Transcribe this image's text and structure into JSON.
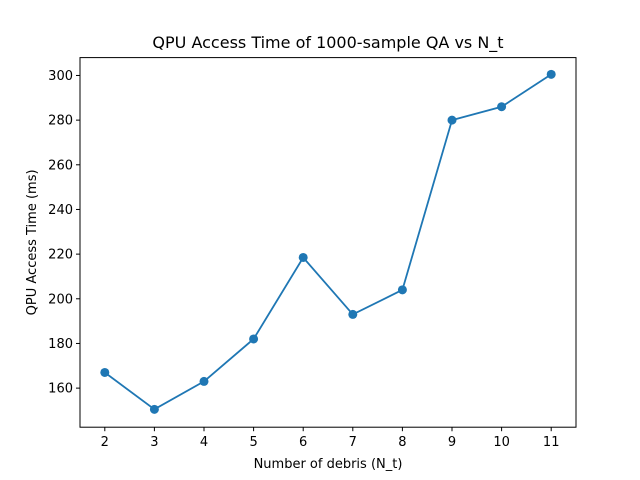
{
  "chart_data": {
    "type": "line",
    "title": "QPU Access Time of 1000-sample QA vs N_t",
    "xlabel": "Number of debris (N_t)",
    "ylabel": "QPU Access Time (ms)",
    "x": [
      2,
      3,
      4,
      5,
      6,
      7,
      8,
      9,
      10,
      11
    ],
    "series": [
      {
        "values": [
          167,
          150.5,
          163,
          182,
          218.5,
          193,
          204,
          280,
          286,
          300.5
        ],
        "color": "#1f77b4",
        "marker": "circle"
      }
    ],
    "xlim": [
      1.5,
      11.5
    ],
    "ylim": [
      142.5,
      308
    ],
    "xticks": [
      2,
      3,
      4,
      5,
      6,
      7,
      8,
      9,
      10,
      11
    ],
    "yticks": [
      160,
      180,
      200,
      220,
      240,
      260,
      280,
      300
    ],
    "grid": false,
    "legend": false
  }
}
